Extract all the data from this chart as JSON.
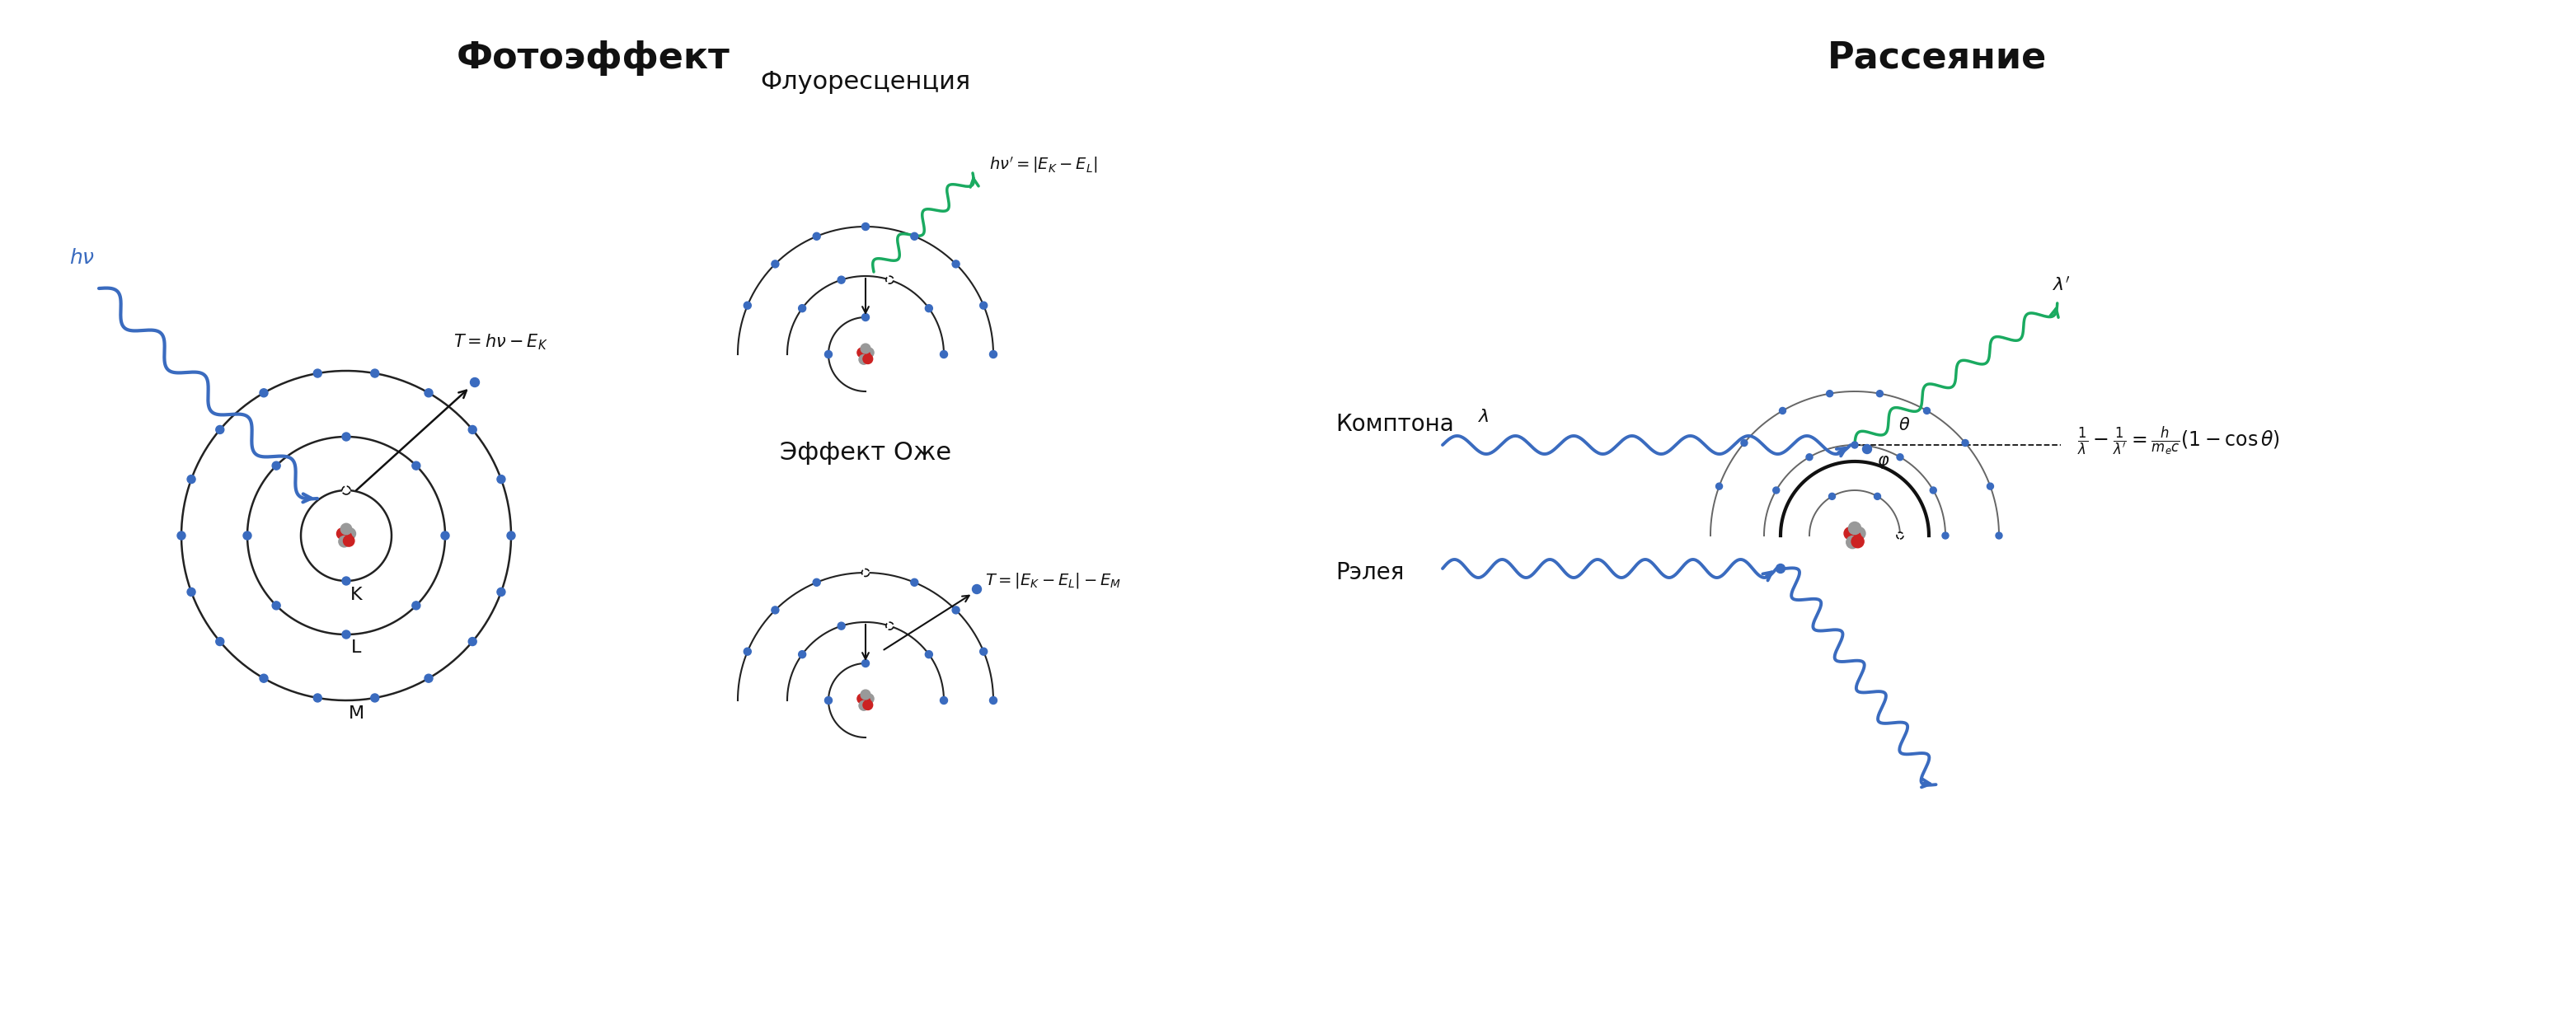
{
  "bg_color": "#ffffff",
  "title_photo": "Фотоэффект",
  "title_scatter": "Рассеяние",
  "label_fluor": "Флуоресценция",
  "label_auger": "Эффект Оже",
  "label_compton": "Комптона",
  "label_rayleigh": "Рэлея",
  "blue_color": "#3a6bbf",
  "green_color": "#1aaa60",
  "dark_color": "#111111",
  "orbit_color": "#222222",
  "gray_orbit_color": "#666666",
  "electron_color": "#3a6bbf",
  "nucleus_red": "#cc2222",
  "nucleus_gray": "#999999"
}
